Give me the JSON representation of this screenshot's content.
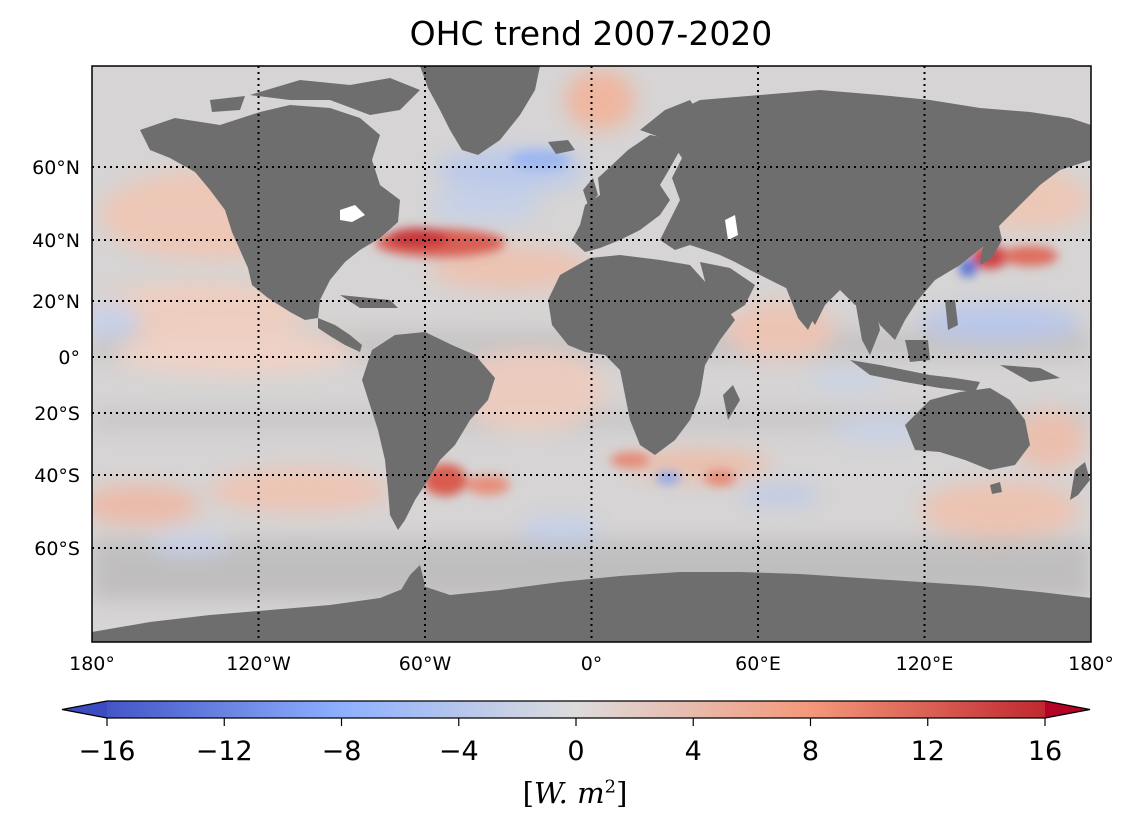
{
  "title": "OHC trend 2007-2020",
  "map": {
    "lon_ticks": [
      "180°",
      "120°W",
      "60°W",
      "0°",
      "60°E",
      "120°E",
      "180°"
    ],
    "lat_ticks": [
      {
        "label": "60°N",
        "lat": 60
      },
      {
        "label": "40°N",
        "lat": 40
      },
      {
        "label": "20°N",
        "lat": 20
      },
      {
        "label": "0°",
        "lat": 0
      },
      {
        "label": "20°S",
        "lat": -20
      },
      {
        "label": "40°S",
        "lat": -40
      },
      {
        "label": "60°S",
        "lat": -60
      }
    ],
    "land_color": "#6e6e6e",
    "gridline_style": "dotted"
  },
  "colorbar": {
    "ticks": [
      "−16",
      "−12",
      "−8",
      "−4",
      "0",
      "4",
      "8",
      "12",
      "16"
    ],
    "range": [
      -16,
      16
    ],
    "colormap": "coolwarm",
    "extend": "both",
    "units_label": "[W. m2]"
  }
}
